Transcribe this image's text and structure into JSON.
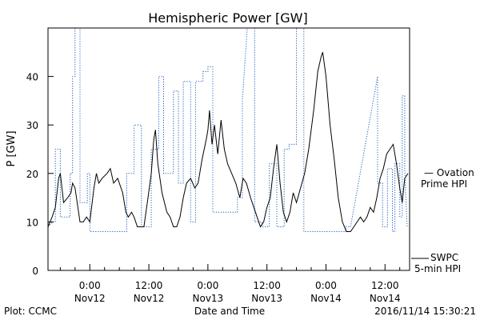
{
  "chart_data": {
    "type": "line",
    "title": "Hemispheric Power [GW]",
    "xlabel": "Date and Time",
    "ylabel": "P [GW]",
    "ylim": [
      0,
      50
    ],
    "xlim": [
      "2016-11-11T15:30",
      "2016-11-14T17:00"
    ],
    "y_ticks": [
      0,
      10,
      20,
      30,
      40
    ],
    "x_ticks": [
      {
        "time": "2016-11-12T00:00",
        "line1": "0:00",
        "line2": "Nov12"
      },
      {
        "time": "2016-11-12T12:00",
        "line1": "12:00",
        "line2": "Nov12"
      },
      {
        "time": "2016-11-13T00:00",
        "line1": "0:00",
        "line2": "Nov13"
      },
      {
        "time": "2016-11-13T12:00",
        "line1": "12:00",
        "line2": "Nov13"
      },
      {
        "time": "2016-11-14T00:00",
        "line1": "0:00",
        "line2": "Nov14"
      },
      {
        "time": "2016-11-14T12:00",
        "line1": "12:00",
        "line2": "Nov14"
      }
    ],
    "grid": false,
    "series": [
      {
        "name_lines": [
          "SWPC",
          "5-min HPI"
        ],
        "color": "#000000",
        "style": "solid",
        "points": [
          [
            "2016-11-11T15:30",
            9
          ],
          [
            "2016-11-11T16:20",
            11
          ],
          [
            "2016-11-11T17:00",
            13
          ],
          [
            "2016-11-11T17:40",
            19
          ],
          [
            "2016-11-11T18:00",
            20
          ],
          [
            "2016-11-11T18:40",
            14
          ],
          [
            "2016-11-11T19:30",
            15
          ],
          [
            "2016-11-11T20:10",
            16
          ],
          [
            "2016-11-11T20:30",
            18
          ],
          [
            "2016-11-11T21:00",
            17
          ],
          [
            "2016-11-11T22:00",
            10
          ],
          [
            "2016-11-11T22:40",
            10
          ],
          [
            "2016-11-11T23:20",
            11
          ],
          [
            "2016-11-12T00:00",
            10
          ],
          [
            "2016-11-12T00:50",
            17
          ],
          [
            "2016-11-12T01:20",
            20
          ],
          [
            "2016-11-12T01:50",
            18
          ],
          [
            "2016-11-12T02:30",
            19
          ],
          [
            "2016-11-12T03:30",
            20
          ],
          [
            "2016-11-12T04:10",
            21
          ],
          [
            "2016-11-12T04:50",
            18
          ],
          [
            "2016-11-12T05:40",
            19
          ],
          [
            "2016-11-12T06:40",
            16
          ],
          [
            "2016-11-12T07:20",
            12
          ],
          [
            "2016-11-12T07:50",
            11
          ],
          [
            "2016-11-12T08:30",
            12
          ],
          [
            "2016-11-12T09:00",
            11
          ],
          [
            "2016-11-12T09:40",
            9
          ],
          [
            "2016-11-12T10:20",
            9
          ],
          [
            "2016-11-12T11:00",
            9
          ],
          [
            "2016-11-12T11:50",
            15
          ],
          [
            "2016-11-12T12:30",
            20
          ],
          [
            "2016-11-12T13:00",
            27
          ],
          [
            "2016-11-12T13:20",
            29
          ],
          [
            "2016-11-12T13:50",
            22
          ],
          [
            "2016-11-12T14:40",
            16
          ],
          [
            "2016-11-12T15:40",
            12
          ],
          [
            "2016-11-12T16:20",
            11
          ],
          [
            "2016-11-12T17:00",
            9
          ],
          [
            "2016-11-12T17:40",
            9
          ],
          [
            "2016-11-12T18:20",
            11
          ],
          [
            "2016-11-12T19:00",
            15
          ],
          [
            "2016-11-12T19:40",
            18
          ],
          [
            "2016-11-12T20:30",
            19
          ],
          [
            "2016-11-12T21:20",
            17
          ],
          [
            "2016-11-12T22:00",
            18
          ],
          [
            "2016-11-12T22:50",
            23
          ],
          [
            "2016-11-12T23:40",
            27
          ],
          [
            "2016-11-13T00:00",
            29
          ],
          [
            "2016-11-13T00:20",
            33
          ],
          [
            "2016-11-13T00:50",
            26
          ],
          [
            "2016-11-13T01:20",
            30
          ],
          [
            "2016-11-13T02:00",
            24
          ],
          [
            "2016-11-13T02:40",
            31
          ],
          [
            "2016-11-13T03:20",
            25
          ],
          [
            "2016-11-13T04:00",
            22
          ],
          [
            "2016-11-13T04:50",
            20
          ],
          [
            "2016-11-13T05:40",
            18
          ],
          [
            "2016-11-13T06:30",
            15
          ],
          [
            "2016-11-13T07:10",
            19
          ],
          [
            "2016-11-13T07:50",
            18
          ],
          [
            "2016-11-13T08:40",
            15
          ],
          [
            "2016-11-13T09:20",
            13
          ],
          [
            "2016-11-13T10:00",
            11
          ],
          [
            "2016-11-13T10:40",
            9
          ],
          [
            "2016-11-13T11:20",
            10
          ],
          [
            "2016-11-13T12:00",
            13
          ],
          [
            "2016-11-13T12:40",
            15
          ],
          [
            "2016-11-13T13:20",
            21
          ],
          [
            "2016-11-13T14:00",
            26
          ],
          [
            "2016-11-13T14:40",
            18
          ],
          [
            "2016-11-13T15:20",
            12
          ],
          [
            "2016-11-13T16:00",
            10
          ],
          [
            "2016-11-13T16:40",
            12
          ],
          [
            "2016-11-13T17:20",
            16
          ],
          [
            "2016-11-13T18:00",
            14
          ],
          [
            "2016-11-13T18:50",
            17
          ],
          [
            "2016-11-13T19:40",
            20
          ],
          [
            "2016-11-13T20:30",
            25
          ],
          [
            "2016-11-13T21:30",
            33
          ],
          [
            "2016-11-13T22:20",
            41
          ],
          [
            "2016-11-13T23:00",
            44
          ],
          [
            "2016-11-13T23:20",
            45
          ],
          [
            "2016-11-14T00:00",
            40
          ],
          [
            "2016-11-14T00:50",
            30
          ],
          [
            "2016-11-14T01:40",
            23
          ],
          [
            "2016-11-14T02:30",
            15
          ],
          [
            "2016-11-14T03:20",
            10
          ],
          [
            "2016-11-14T04:10",
            8
          ],
          [
            "2016-11-14T05:00",
            8
          ],
          [
            "2016-11-14T05:40",
            9
          ],
          [
            "2016-11-14T06:20",
            10
          ],
          [
            "2016-11-14T07:00",
            11
          ],
          [
            "2016-11-14T07:40",
            10
          ],
          [
            "2016-11-14T08:20",
            11
          ],
          [
            "2016-11-14T09:00",
            13
          ],
          [
            "2016-11-14T09:40",
            12
          ],
          [
            "2016-11-14T10:20",
            15
          ],
          [
            "2016-11-14T11:00",
            19
          ],
          [
            "2016-11-14T11:40",
            21
          ],
          [
            "2016-11-14T12:20",
            24
          ],
          [
            "2016-11-14T13:00",
            25
          ],
          [
            "2016-11-14T13:40",
            26
          ],
          [
            "2016-11-14T14:20",
            22
          ],
          [
            "2016-11-14T15:00",
            17
          ],
          [
            "2016-11-14T15:30",
            14
          ],
          [
            "2016-11-14T16:00",
            19
          ],
          [
            "2016-11-14T16:40",
            20
          ]
        ]
      },
      {
        "name_lines": [
          "— Ovation",
          "Prime HPI"
        ],
        "color": "#1f5fbf",
        "style": "dotted",
        "points": [
          [
            "2016-11-11T15:30",
            9
          ],
          [
            "2016-11-11T16:30",
            10
          ],
          [
            "2016-11-11T17:00",
            10
          ],
          [
            "2016-11-11T17:00",
            25
          ],
          [
            "2016-11-11T18:00",
            25
          ],
          [
            "2016-11-11T18:00",
            11
          ],
          [
            "2016-11-11T20:00",
            11
          ],
          [
            "2016-11-11T20:00",
            20
          ],
          [
            "2016-11-11T20:30",
            20
          ],
          [
            "2016-11-11T20:30",
            40
          ],
          [
            "2016-11-11T21:00",
            40
          ],
          [
            "2016-11-11T21:00",
            50
          ],
          [
            "2016-11-11T22:00",
            50
          ],
          [
            "2016-11-11T22:00",
            14
          ],
          [
            "2016-11-11T23:30",
            14
          ],
          [
            "2016-11-11T23:30",
            20
          ],
          [
            "2016-11-12T00:00",
            20
          ],
          [
            "2016-11-12T00:00",
            8
          ],
          [
            "2016-11-12T07:30",
            8
          ],
          [
            "2016-11-12T07:30",
            20
          ],
          [
            "2016-11-12T09:00",
            20
          ],
          [
            "2016-11-12T09:00",
            30
          ],
          [
            "2016-11-12T10:30",
            30
          ],
          [
            "2016-11-12T10:30",
            9
          ],
          [
            "2016-11-12T12:30",
            9
          ],
          [
            "2016-11-12T12:30",
            25
          ],
          [
            "2016-11-12T14:00",
            25
          ],
          [
            "2016-11-12T14:00",
            40
          ],
          [
            "2016-11-12T15:00",
            40
          ],
          [
            "2016-11-12T15:00",
            20
          ],
          [
            "2016-11-12T17:00",
            20
          ],
          [
            "2016-11-12T17:00",
            37
          ],
          [
            "2016-11-12T18:00",
            37
          ],
          [
            "2016-11-12T18:00",
            18
          ],
          [
            "2016-11-12T19:00",
            18
          ],
          [
            "2016-11-12T19:00",
            39
          ],
          [
            "2016-11-12T20:30",
            39
          ],
          [
            "2016-11-12T20:30",
            10
          ],
          [
            "2016-11-12T21:30",
            10
          ],
          [
            "2016-11-12T21:30",
            39
          ],
          [
            "2016-11-12T23:00",
            39
          ],
          [
            "2016-11-12T23:00",
            41
          ],
          [
            "2016-11-13T00:00",
            41
          ],
          [
            "2016-11-13T00:00",
            42
          ],
          [
            "2016-11-13T01:00",
            42
          ],
          [
            "2016-11-13T01:00",
            12
          ],
          [
            "2016-11-13T06:00",
            12
          ],
          [
            "2016-11-13T06:00",
            15
          ],
          [
            "2016-11-13T07:00",
            15
          ],
          [
            "2016-11-13T07:00",
            35
          ],
          [
            "2016-11-13T08:00",
            50
          ],
          [
            "2016-11-13T09:30",
            50
          ],
          [
            "2016-11-13T09:30",
            10
          ],
          [
            "2016-11-13T11:00",
            10
          ],
          [
            "2016-11-13T11:00",
            9
          ],
          [
            "2016-11-13T12:30",
            9
          ],
          [
            "2016-11-13T12:30",
            22
          ],
          [
            "2016-11-13T14:00",
            22
          ],
          [
            "2016-11-13T14:00",
            9
          ],
          [
            "2016-11-13T15:30",
            9
          ],
          [
            "2016-11-13T15:30",
            25
          ],
          [
            "2016-11-13T16:30",
            25
          ],
          [
            "2016-11-13T16:30",
            26
          ],
          [
            "2016-11-13T18:00",
            26
          ],
          [
            "2016-11-13T18:00",
            50
          ],
          [
            "2016-11-13T19:30",
            50
          ],
          [
            "2016-11-13T19:30",
            8
          ],
          [
            "2016-11-14T04:00",
            8
          ],
          [
            "2016-11-14T04:00",
            9
          ],
          [
            "2016-11-14T05:00",
            9
          ],
          [
            "2016-11-14T10:30",
            40
          ],
          [
            "2016-11-14T10:30",
            18
          ],
          [
            "2016-11-14T11:30",
            18
          ],
          [
            "2016-11-14T11:30",
            9
          ],
          [
            "2016-11-14T12:30",
            9
          ],
          [
            "2016-11-14T12:30",
            21
          ],
          [
            "2016-11-14T13:30",
            21
          ],
          [
            "2016-11-14T13:30",
            8
          ],
          [
            "2016-11-14T14:00",
            8
          ],
          [
            "2016-11-14T14:00",
            22
          ],
          [
            "2016-11-14T15:00",
            22
          ],
          [
            "2016-11-14T15:00",
            11
          ],
          [
            "2016-11-14T15:30",
            11
          ],
          [
            "2016-11-14T15:30",
            36
          ],
          [
            "2016-11-14T16:00",
            36
          ],
          [
            "2016-11-14T16:00",
            21
          ],
          [
            "2016-11-14T16:30",
            9
          ]
        ]
      }
    ]
  },
  "footer": {
    "plot_credit": "Plot: CCMC",
    "timestamp": "2016/11/14 15:30:21"
  }
}
